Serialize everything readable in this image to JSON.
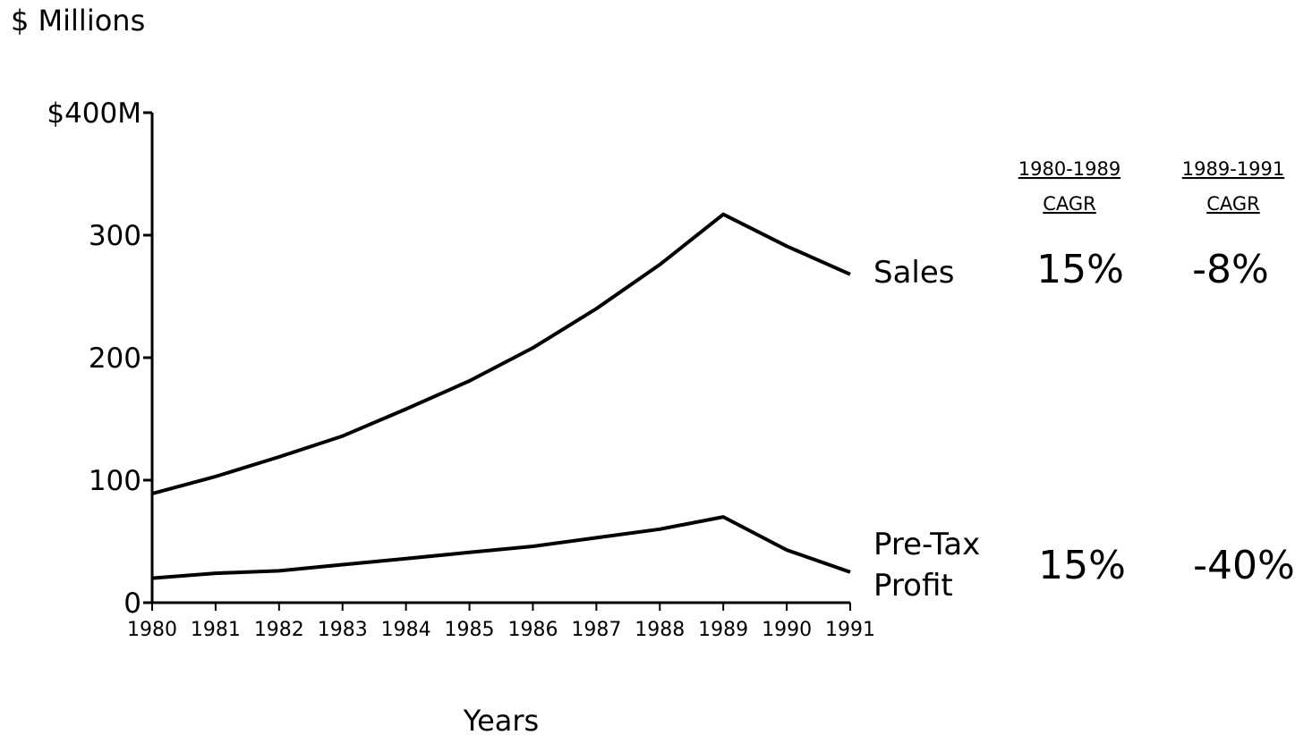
{
  "chart_data": {
    "type": "line",
    "unit_label": "$ Millions",
    "xlabel": "Years",
    "ylabel": "",
    "x": [
      "1980",
      "1981",
      "1982",
      "1983",
      "1984",
      "1985",
      "1986",
      "1987",
      "1988",
      "1989",
      "1990",
      "1991"
    ],
    "ylim": [
      0,
      400
    ],
    "yticks": [
      {
        "value": 0,
        "label": "0"
      },
      {
        "value": 100,
        "label": "100"
      },
      {
        "value": 200,
        "label": "200"
      },
      {
        "value": 300,
        "label": "300"
      },
      {
        "value": 400,
        "label": "$400M"
      }
    ],
    "grid": false,
    "series": [
      {
        "name": "Sales",
        "values": [
          89,
          103,
          119,
          136,
          158,
          181,
          208,
          240,
          276,
          317,
          291,
          268
        ],
        "cagr": [
          "15%",
          "-8%"
        ]
      },
      {
        "name": "Pre-Tax Profit",
        "name_lines": [
          "Pre-Tax",
          "Profit"
        ],
        "values": [
          20,
          24,
          26,
          31,
          36,
          41,
          46,
          53,
          60,
          70,
          43,
          25
        ],
        "cagr": [
          "15%",
          "-40%"
        ]
      }
    ],
    "cagr_headers": [
      {
        "period": "1980-1989",
        "label": "CAGR"
      },
      {
        "period": "1989-1991",
        "label": "CAGR"
      }
    ],
    "colors": {
      "line": "#000000",
      "text": "#000000",
      "background": "#ffffff"
    }
  }
}
